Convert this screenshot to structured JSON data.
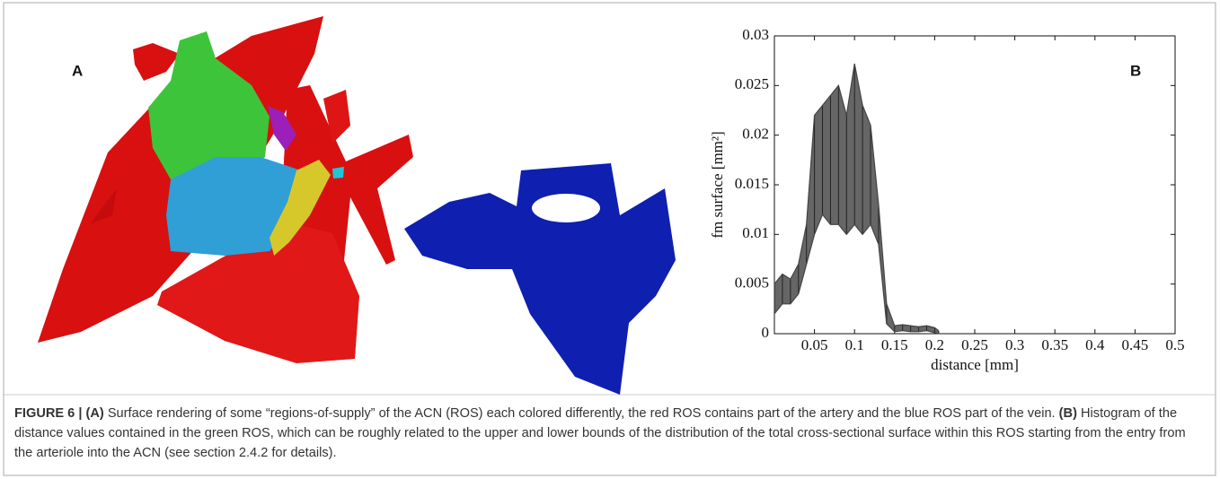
{
  "panel_a_label": "A",
  "chart_data": {
    "type": "area",
    "panel_label": "B",
    "xlabel": "distance [mm]",
    "ylabel": "fm surface [mm²]",
    "x": [
      0.0,
      0.01,
      0.02,
      0.03,
      0.04,
      0.05,
      0.06,
      0.07,
      0.08,
      0.09,
      0.1,
      0.11,
      0.12,
      0.13,
      0.14,
      0.15,
      0.16,
      0.17,
      0.18,
      0.19,
      0.2,
      0.205
    ],
    "series": [
      {
        "color": "#444444",
        "values": [
          0.005,
          0.006,
          0.0055,
          0.007,
          0.011,
          0.022,
          0.023,
          0.024,
          0.025,
          0.022,
          0.0272,
          0.023,
          0.021,
          0.013,
          0.003,
          0.0008,
          0.0009,
          0.0008,
          0.0007,
          0.0008,
          0.0006,
          0.0003
        ]
      },
      {
        "color": "#444444",
        "values": [
          0.002,
          0.003,
          0.003,
          0.004,
          0.007,
          0.01,
          0.012,
          0.011,
          0.011,
          0.01,
          0.011,
          0.01,
          0.011,
          0.009,
          0.001,
          0.0002,
          0.0003,
          0.0002,
          0.0002,
          0.0003,
          0.0001,
          0
        ]
      }
    ],
    "fill": "#666666",
    "xlim": [
      0,
      0.5
    ],
    "xticks": [
      0.05,
      0.1,
      0.15,
      0.2,
      0.25,
      0.3,
      0.35,
      0.4,
      0.45,
      0.5
    ],
    "ylim": [
      0,
      0.03
    ],
    "yticks": [
      0,
      0.005,
      0.01,
      0.015,
      0.02,
      0.025,
      0.03
    ],
    "grid": false
  },
  "caption": {
    "label": "FIGURE 6 | (A)",
    "text_a": " Surface rendering of some “regions-of-supply” of the ACN (ROS) each colored differently, the red ROS contains part of the artery and the blue ROS part of the vein. ",
    "label_b": "(B)",
    "text_b": " Histogram of the distance values contained in the green ROS, which can be roughly related to the upper and lower bounds of the distribution of the total cross-sectional surface within this ROS starting from the entry from the arteriole into the ACN (see section 2.4.2 for details)."
  }
}
